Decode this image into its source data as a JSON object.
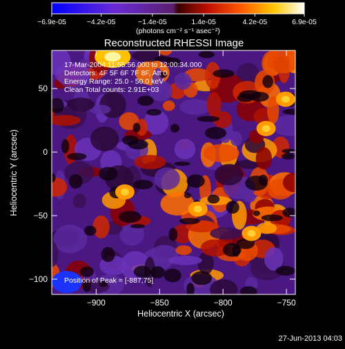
{
  "chart_data": {
    "type": "heatmap",
    "title": "Reconstructed RHESSI Image",
    "xlabel": "Heliocentric X (arcsec)",
    "ylabel": "Heliocentric Y (arcsec)",
    "xlim": [
      -935,
      -743
    ],
    "ylim": [
      -112,
      80
    ],
    "x_ticks": [
      -900,
      -850,
      -800,
      -750
    ],
    "y_ticks": [
      -100,
      -50,
      0,
      50
    ],
    "colorbar": {
      "ticks": [
        -6.9e-05,
        -4.2e-05,
        -1.4e-05,
        1.4e-05,
        4.2e-05,
        6.9e-05
      ],
      "tick_labels": [
        "-6.9e-05",
        "-4.2e-05",
        "-1.4e-05",
        "1.4e-05",
        "4.2e-05",
        "6.9e-05"
      ],
      "units": "(photons cm⁻² s⁻¹ asec⁻²)",
      "range": [
        -6.9e-05,
        6.9e-05
      ],
      "colormap": "blue-purple-red-yellow-white"
    },
    "annotations": [
      "17-Mar-2004 11:55:56.000 to 12:00:34.000",
      "Detectors: 4F 5F 6F 7F 8F, Att 0",
      "Energy Range: 25.0 - 50.0 keV",
      "Clean     Total counts: 2.91E+03"
    ],
    "peak_label": "Position of Peak = [-887,75]",
    "peak_position": [
      -887,
      75
    ],
    "grid": false
  },
  "footer": {
    "timestamp": "27-Jun-2013 04:03"
  }
}
